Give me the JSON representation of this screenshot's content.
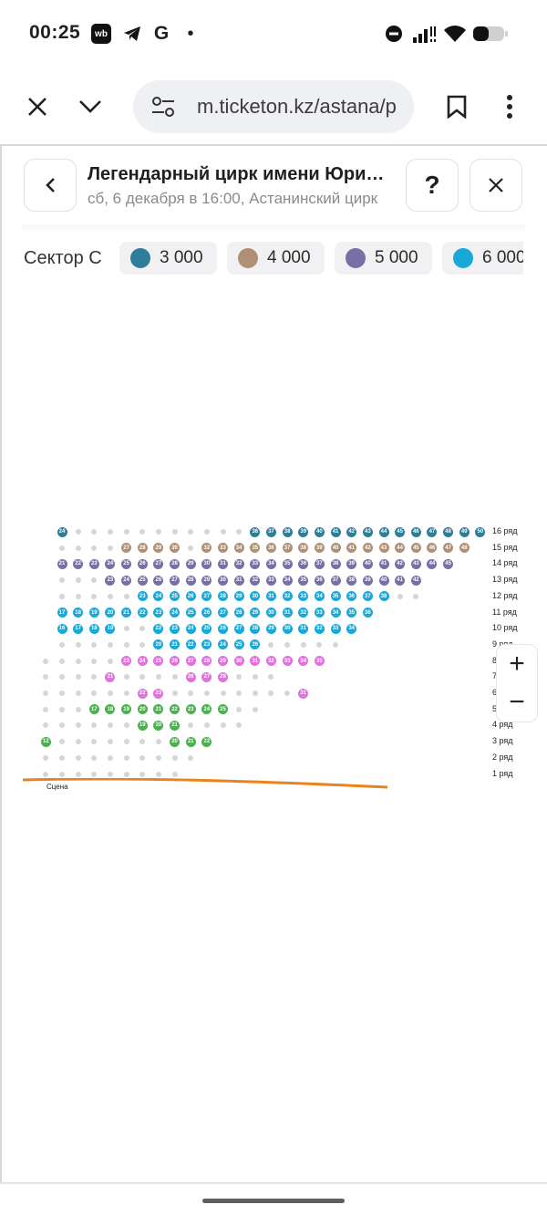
{
  "status_bar": {
    "time": "00:25",
    "wb_label": "wb",
    "g_label": "G",
    "dot": "•",
    "icons": [
      "wb-app-icon",
      "telegram-icon",
      "google-icon",
      "notification-dot",
      "do-not-disturb-icon",
      "signal-icon",
      "wifi-icon",
      "battery-icon"
    ]
  },
  "browser": {
    "url": "m.ticketon.kz/astana/p",
    "buttons": [
      "close",
      "tabs-chevron",
      "bookmark",
      "more"
    ]
  },
  "event": {
    "title": "Легендарный цирк имени Юрия Никулина",
    "subtitle": "сб, 6 декабря в 16:00, Астанинский цирк",
    "help_label": "?"
  },
  "legend": {
    "sector": "Сектор С",
    "prices": [
      {
        "label": "3 000",
        "color": "#2e7d99"
      },
      {
        "label": "4 000",
        "color": "#b09075"
      },
      {
        "label": "5 000",
        "color": "#786fa6"
      },
      {
        "label": "6 000",
        "color": "#19a9d8"
      }
    ]
  },
  "seat_colors": {
    "p3000": "#2e7d99",
    "p4000": "#b09075",
    "p5000": "#786fa6",
    "p6000": "#19a9d8",
    "pink": "#e36fe0",
    "green": "#4cb050",
    "ghost": "#d6d6d6"
  },
  "rows": [
    {
      "label": "16 ряд",
      "segments": [
        {
          "type": "s",
          "n": "24",
          "c": "p3000"
        },
        {
          "type": "g",
          "count": 11
        },
        {
          "type": "r",
          "from": 36,
          "to": 50,
          "c": "p3000"
        }
      ]
    },
    {
      "label": "15 ряд",
      "segments": [
        {
          "type": "g",
          "count": 4
        },
        {
          "type": "r",
          "from": 27,
          "to": 30,
          "c": "p4000"
        },
        {
          "type": "g",
          "count": 1
        },
        {
          "type": "r",
          "from": 32,
          "to": 48,
          "c": "p4000"
        }
      ]
    },
    {
      "label": "14 ряд",
      "segments": [
        {
          "type": "r",
          "from": 21,
          "to": 45,
          "c": "p5000"
        }
      ]
    },
    {
      "label": "13 ряд",
      "segments": [
        {
          "type": "g",
          "count": 3
        },
        {
          "type": "r",
          "from": 23,
          "to": 42,
          "c": "p5000"
        }
      ]
    },
    {
      "label": "12 ряд",
      "segments": [
        {
          "type": "g",
          "count": 5
        },
        {
          "type": "r",
          "from": 23,
          "to": 38,
          "c": "p6000"
        },
        {
          "type": "g",
          "count": 2
        }
      ]
    },
    {
      "label": "11 ряд",
      "segments": [
        {
          "type": "r",
          "from": 17,
          "to": 36,
          "c": "p6000"
        }
      ]
    },
    {
      "label": "10 ряд",
      "segments": [
        {
          "type": "r",
          "from": 16,
          "to": 19,
          "c": "p6000"
        },
        {
          "type": "g",
          "count": 2
        },
        {
          "type": "r",
          "from": 22,
          "to": 34,
          "c": "p6000"
        }
      ]
    },
    {
      "label": "9 ряд",
      "segments": [
        {
          "type": "g",
          "count": 6
        },
        {
          "type": "r",
          "from": 20,
          "to": 26,
          "c": "p6000"
        },
        {
          "type": "g",
          "count": 5
        }
      ]
    },
    {
      "label": "8 ряд",
      "segments": [
        {
          "type": "g",
          "count": 5
        },
        {
          "type": "r",
          "from": 23,
          "to": 35,
          "c": "pink"
        }
      ]
    },
    {
      "label": "7 ряд",
      "segments": [
        {
          "type": "g",
          "count": 4
        },
        {
          "type": "s",
          "n": "21",
          "c": "pink"
        },
        {
          "type": "g",
          "count": 4
        },
        {
          "type": "r",
          "from": 26,
          "to": 28,
          "c": "pink"
        },
        {
          "type": "g",
          "count": 3
        }
      ]
    },
    {
      "label": "6 ряд",
      "segments": [
        {
          "type": "g",
          "count": 6
        },
        {
          "type": "r",
          "from": 22,
          "to": 23,
          "c": "pink"
        },
        {
          "type": "g",
          "count": 8
        },
        {
          "type": "s",
          "n": "31",
          "c": "pink"
        }
      ]
    },
    {
      "label": "5 ряд",
      "segments": [
        {
          "type": "g",
          "count": 3
        },
        {
          "type": "r",
          "from": 17,
          "to": 25,
          "c": "green"
        },
        {
          "type": "g",
          "count": 2
        }
      ]
    },
    {
      "label": "4 ряд",
      "segments": [
        {
          "type": "g",
          "count": 6
        },
        {
          "type": "r",
          "from": 19,
          "to": 21,
          "c": "green"
        },
        {
          "type": "g",
          "count": 4
        }
      ]
    },
    {
      "label": "3 ряд",
      "segments": [
        {
          "type": "s",
          "n": "12",
          "c": "green"
        },
        {
          "type": "g",
          "count": 7
        },
        {
          "type": "r",
          "from": 20,
          "to": 22,
          "c": "green"
        }
      ]
    },
    {
      "label": "2 ряд",
      "segments": [
        {
          "type": "g",
          "count": 10
        }
      ]
    },
    {
      "label": "1 ряд",
      "segments": [
        {
          "type": "g",
          "count": 9
        }
      ]
    }
  ],
  "stage_label": "Сцена",
  "zoom": {
    "in": "+",
    "out": "−"
  }
}
